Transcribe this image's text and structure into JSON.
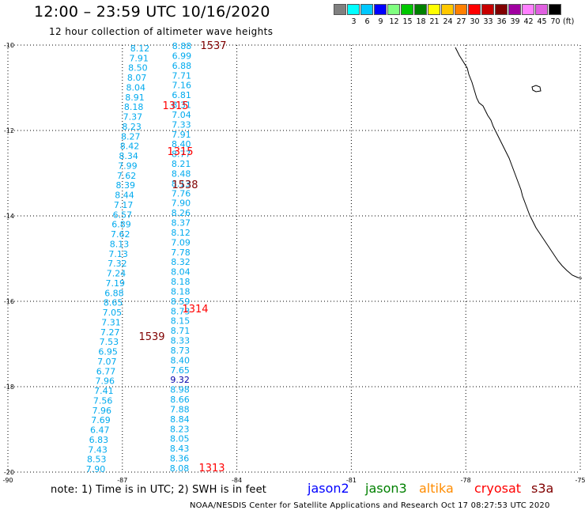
{
  "header": {
    "title": "12:00 – 23:59 UTC 10/16/2020",
    "subtitle": "12 hour collection of altimeter wave heights"
  },
  "color_scale": {
    "colors": [
      "#808080",
      "#00ffff",
      "#00c8ff",
      "#0000ff",
      "#80ff80",
      "#00c800",
      "#008000",
      "#ffff00",
      "#ffc800",
      "#ff8000",
      "#ff0000",
      "#c80000",
      "#800000",
      "#a000a0",
      "#ff80ff",
      "#e060e0",
      "#000000"
    ],
    "labels": [
      "",
      "3",
      "6",
      "9",
      "12",
      "15",
      "18",
      "21",
      "24",
      "27",
      "30",
      "33",
      "36",
      "39",
      "42",
      "45",
      "70"
    ],
    "unit": "(ft)"
  },
  "map": {
    "lon_range": [
      -90,
      -75
    ],
    "lat_range": [
      -20,
      -10
    ],
    "x_ticks": [
      "-90",
      "-87",
      "-84",
      "-81",
      "-78",
      "-75"
    ],
    "y_ticks": [
      "-10",
      "-12",
      "-14",
      "-16",
      "-18",
      "-20"
    ]
  },
  "track_a": {
    "color": "#00aaee",
    "values": [
      "8.12",
      "7.91",
      "8.50",
      "8.07",
      "8.04",
      "8.91",
      "8.18",
      "7.37",
      "8.23",
      "8.27",
      "8.42",
      "8.34",
      "7.99",
      "7.62",
      "8.39",
      "8.44",
      "7.17",
      "6.57",
      "6.89",
      "7.62",
      "8.13",
      "7.13",
      "7.32",
      "7.24",
      "7.19",
      "6.88",
      "8.65",
      "7.05",
      "7.31",
      "7.27",
      "7.53",
      "6.95",
      "7.07",
      "6.77",
      "7.96",
      "7.41",
      "7.56",
      "7.96",
      "7.69",
      "6.47",
      "6.83",
      "7.43",
      "8.53",
      "7.90"
    ],
    "special": []
  },
  "track_b": {
    "color": "#00aaee",
    "values": [
      "8.88",
      "6.99",
      "6.88",
      "7.71",
      "7.16",
      "6.81",
      "8.31",
      "7.04",
      "7.33",
      "7.91",
      "8.40",
      "8.77",
      "8.21",
      "8.48",
      "8.13",
      "7.76",
      "7.90",
      "8.26",
      "8.37",
      "8.12",
      "7.09",
      "7.78",
      "8.32",
      "8.04",
      "8.18",
      "8.18",
      "8.59",
      "8.73",
      "8.15",
      "8.71",
      "8.33",
      "8.73",
      "8.40",
      "7.65",
      "9.32",
      "8.98",
      "8.66",
      "7.88",
      "8.84",
      "8.23",
      "8.05",
      "8.43",
      "8.36",
      "8.08"
    ],
    "special": [
      {
        "index": 34,
        "color": "#0000aa"
      }
    ]
  },
  "pass_labels": [
    {
      "text": "1537",
      "color": "#800000"
    },
    {
      "text": "1315",
      "color": "#ff0000"
    },
    {
      "text": "1315",
      "color": "#ff0000"
    },
    {
      "text": "1538",
      "color": "#800000"
    },
    {
      "text": "1314",
      "color": "#ff0000"
    },
    {
      "text": "1539",
      "color": "#800000"
    },
    {
      "text": "1313",
      "color": "#ff0000"
    }
  ],
  "note": "note:  1) Time is in UTC;  2) SWH is in feet",
  "satellites": [
    {
      "name": "jason2",
      "color": "#0000ff"
    },
    {
      "name": "jason3",
      "color": "#008000"
    },
    {
      "name": "altika",
      "color": "#ff8c00"
    },
    {
      "name": "cryosat",
      "color": "#ff0000"
    },
    {
      "name": "s3a",
      "color": "#800000"
    }
  ],
  "footer": "NOAA/NESDIS Center for Satellite Applications and Research    Oct 17 08:27:53 UTC 2020"
}
